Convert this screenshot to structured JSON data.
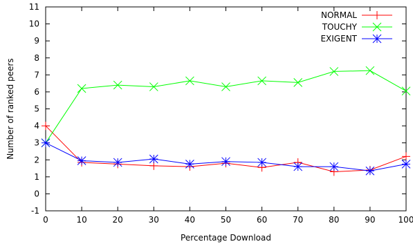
{
  "chart_data": {
    "type": "line",
    "xlabel": "Percentage Download",
    "ylabel": "Number of ranked peers",
    "xlim": [
      0,
      100
    ],
    "ylim": [
      -1,
      11
    ],
    "x_ticks": [
      "0",
      "10",
      "20",
      "30",
      "40",
      "50",
      "60",
      "70",
      "80",
      "90",
      "100"
    ],
    "y_ticks": [
      "-1",
      "0",
      "1",
      "2",
      "3",
      "4",
      "5",
      "6",
      "7",
      "8",
      "9",
      "10",
      "11"
    ],
    "x": [
      0,
      10,
      20,
      30,
      40,
      50,
      60,
      70,
      80,
      90,
      100
    ],
    "legend_position": "top-right",
    "grid": false,
    "series": [
      {
        "name": "NORMAL",
        "color": "#ff0000",
        "marker": "plus",
        "values": [
          4.0,
          1.85,
          1.75,
          1.65,
          1.6,
          1.8,
          1.55,
          1.85,
          1.3,
          1.4,
          2.2
        ]
      },
      {
        "name": "TOUCHY",
        "color": "#00ff00",
        "marker": "cross",
        "values": [
          3.0,
          6.2,
          6.4,
          6.3,
          6.65,
          6.3,
          6.65,
          6.55,
          7.2,
          7.25,
          6.05
        ]
      },
      {
        "name": "EXIGENT",
        "color": "#0000ff",
        "marker": "star",
        "values": [
          3.0,
          1.95,
          1.85,
          2.05,
          1.75,
          1.9,
          1.85,
          1.6,
          1.6,
          1.35,
          1.75
        ]
      }
    ]
  }
}
